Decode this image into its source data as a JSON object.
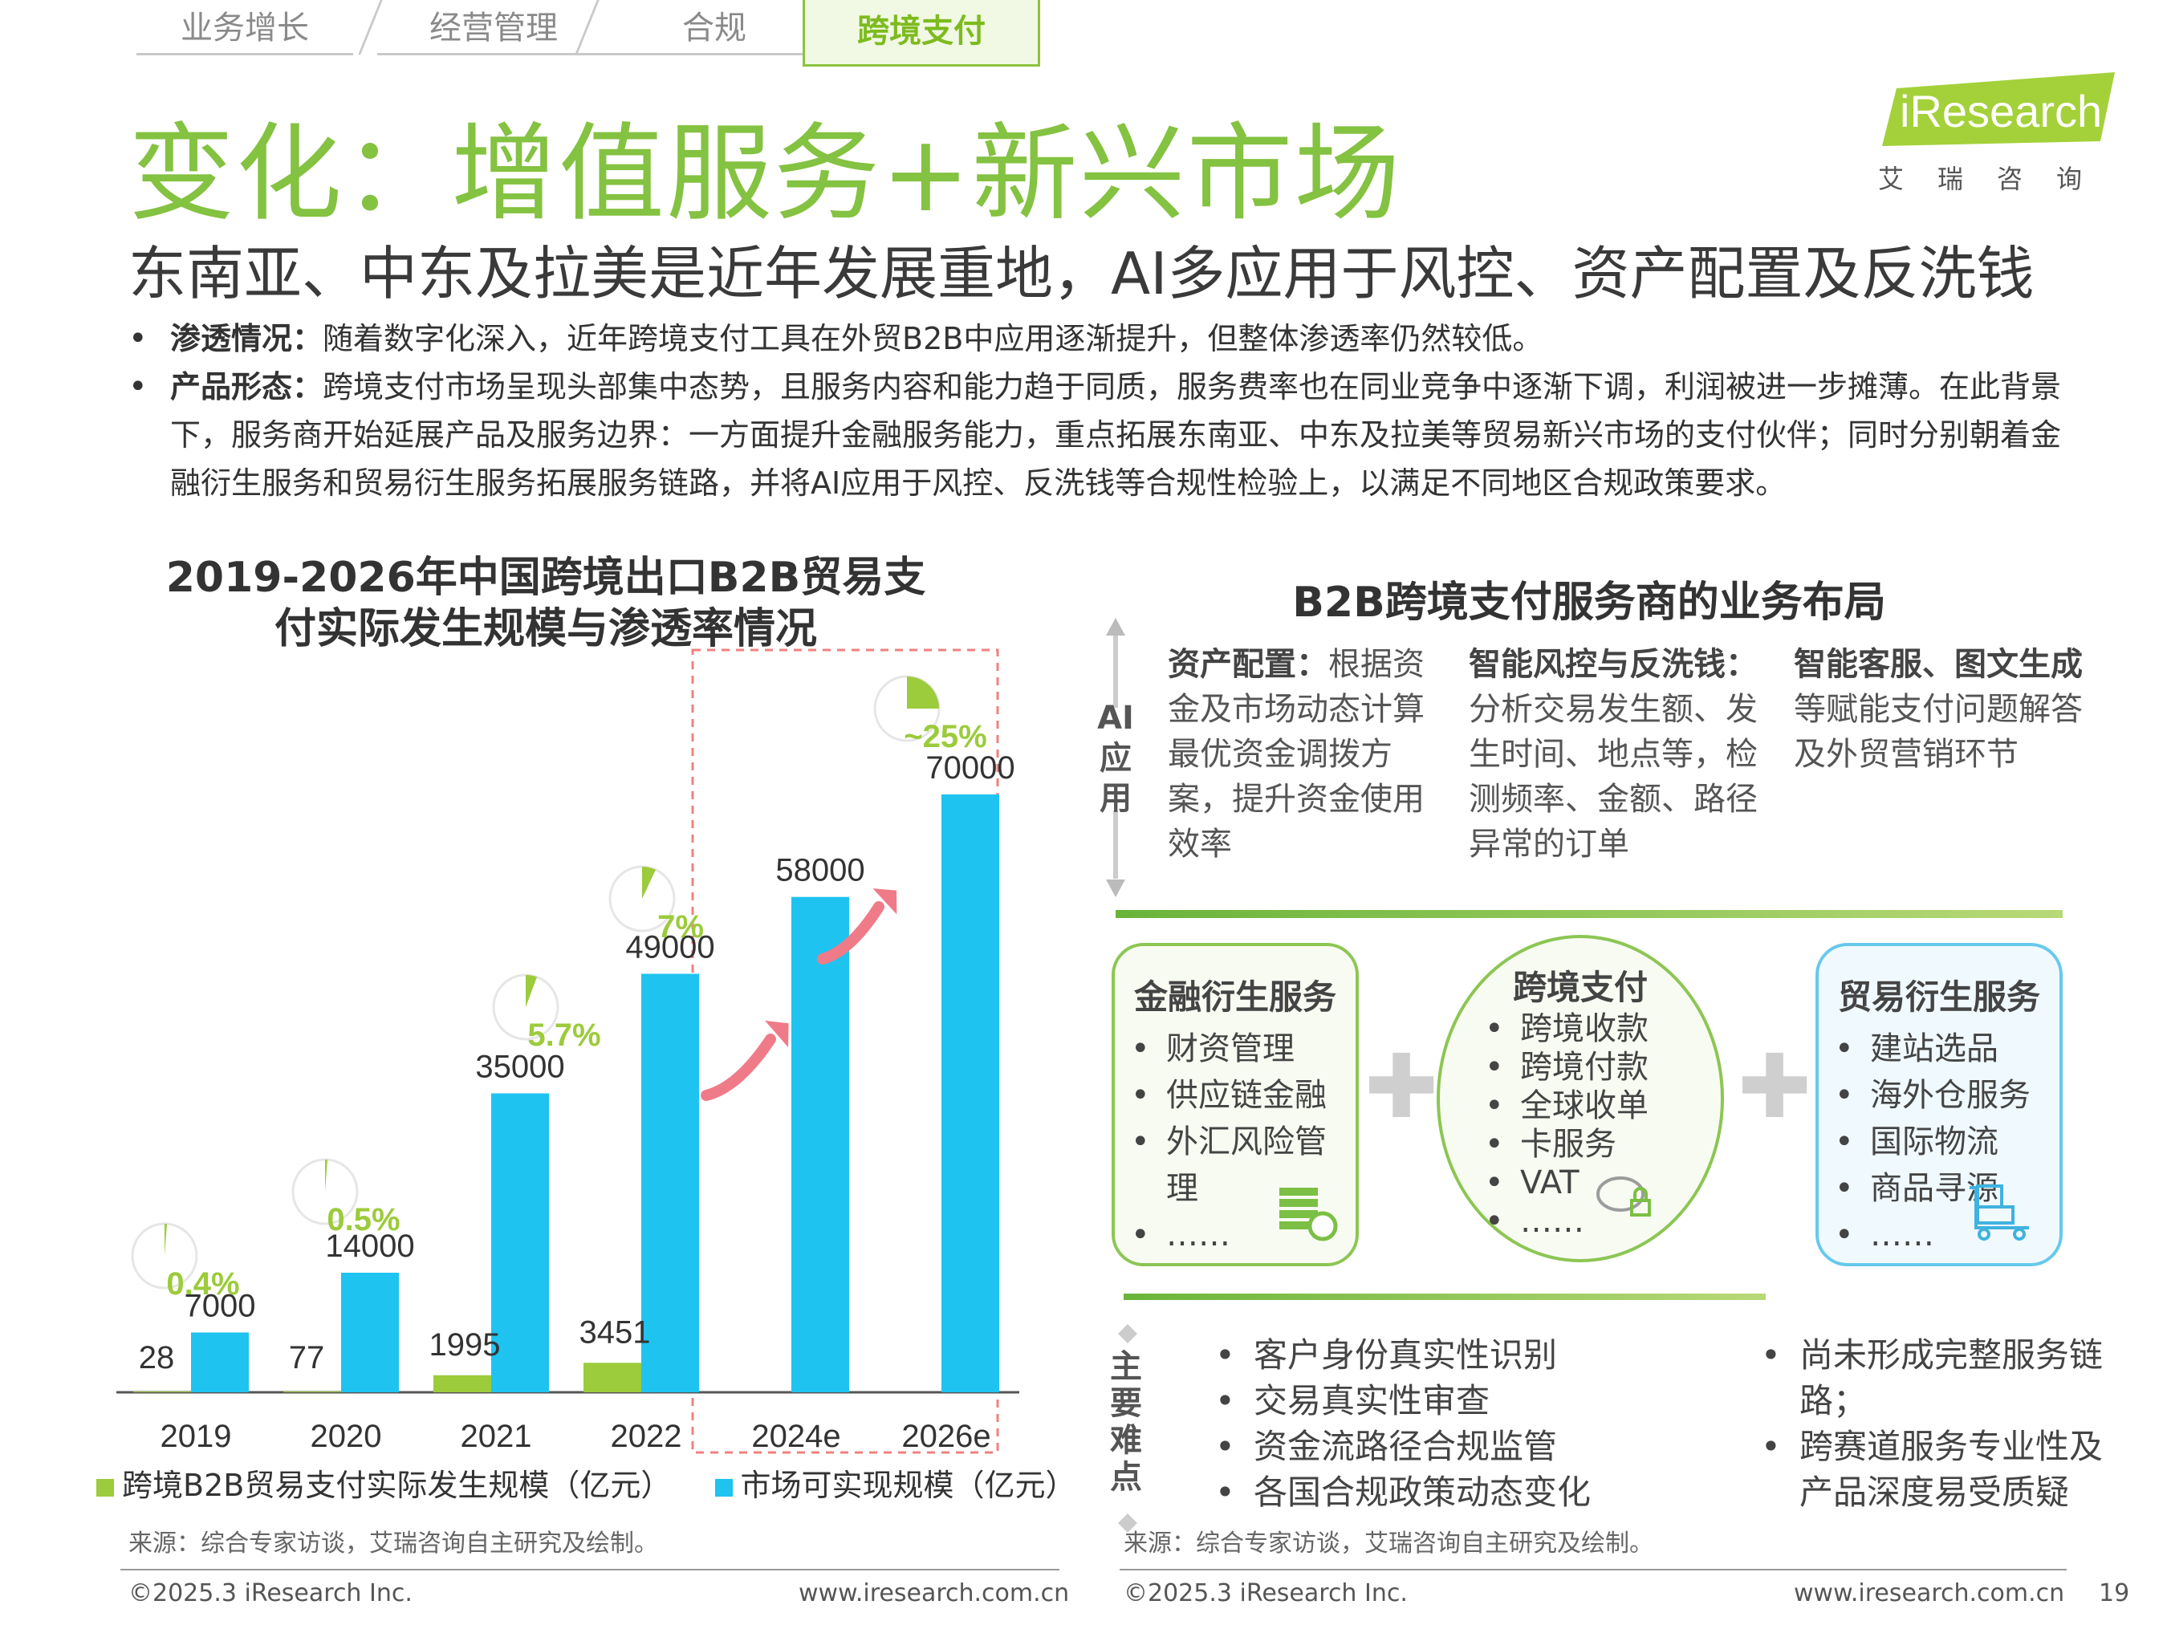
{
  "tabs": [
    "业务增长",
    "经营管理",
    "合规",
    "跨境支付"
  ],
  "title": "变化：增值服务+新兴市场",
  "subtitle": "东南亚、中东及拉美是近年发展重地，AI多应用于风控、资产配置及反洗钱",
  "logo": {
    "text": "iResearch",
    "cn": "艾瑞咨询"
  },
  "bullets": [
    {
      "label": "渗透情况：",
      "text": "随着数字化深入，近年跨境支付工具在外贸B2B中应用逐渐提升，但整体渗透率仍然较低。"
    },
    {
      "label": "产品形态：",
      "text": "跨境支付市场呈现头部集中态势，且服务内容和能力趋于同质，服务费率也在同业竞争中逐渐下调，利润被进一步摊薄。在此背景下，服务商开始延展产品及服务边界：一方面提升金融服务能力，重点拓展东南亚、中东及拉美等贸易新兴市场的支付伙伴；同时分别朝着金融衍生服务和贸易衍生服务拓展服务链路，并将AI应用于风控、反洗钱等合规性检验上，以满足不同地区合规政策要求。"
    }
  ],
  "chart_data": {
    "type": "bar",
    "title": "2019-2026年中国跨境出口B2B贸易支付实际发生规模与渗透率情况",
    "categories": [
      "2019",
      "2020",
      "2021",
      "2022",
      "2024e",
      "2026e"
    ],
    "series": [
      {
        "name": "跨境B2B贸易支付实际发生规模（亿元）",
        "color": "#9ccb3b",
        "values": [
          28,
          77,
          1995,
          3451,
          null,
          null
        ],
        "labels": [
          "28",
          "77",
          "1995",
          "3451",
          "",
          ""
        ]
      },
      {
        "name": "市场可实现规模（亿元）",
        "color": "#1ec3f0",
        "values": [
          7000,
          14000,
          35000,
          49000,
          58000,
          70000
        ],
        "labels": [
          "7000",
          "14000",
          "35000",
          "49000",
          "58000",
          "70000"
        ]
      }
    ],
    "penetration": [
      {
        "label": "0.4%",
        "value": 0.4
      },
      {
        "label": "0.5%",
        "value": 0.5
      },
      {
        "label": "5.7%",
        "value": 5.7
      },
      {
        "label": "7%",
        "value": 7
      },
      null,
      {
        "label": "~25%",
        "value": 25
      }
    ],
    "ylim": [
      0,
      70000
    ],
    "forecast_highlight": [
      "2024e",
      "2026e"
    ]
  },
  "chart_source": "来源：综合专家访谈，艾瑞咨询自主研究及绘制。",
  "footer_left": {
    "copyright": "©2025.3 iResearch Inc.",
    "url": "www.iresearch.com.cn"
  },
  "right_panel": {
    "title": "B2B跨境支付服务商的业务布局",
    "ai_label": "AI应用",
    "ai_cols": [
      {
        "head": "资产配置：",
        "text": "根据资金及市场动态计算最优资金调拨方案，提升资金使用效率"
      },
      {
        "head": "智能风控与反洗钱：",
        "text": "分析交易发生额、发生时间、地点等，检测频率、金额、路径异常的订单"
      },
      {
        "head": "智能客服、图文生成",
        "text": "等赋能支付问题解答及外贸营销环节"
      }
    ],
    "boxes": [
      {
        "title": "金融衍生服务",
        "items": [
          "财资管理",
          "供应链金融",
          "外汇风险管理",
          "……"
        ]
      },
      {
        "title": "跨境支付",
        "items": [
          "跨境收款",
          "跨境付款",
          "全球收单",
          "卡服务",
          "VAT",
          "……"
        ]
      },
      {
        "title": "贸易衍生服务",
        "items": [
          "建站选品",
          "海外仓服务",
          "国际物流",
          "商品寻源",
          "……"
        ]
      }
    ],
    "diff_label": "主要难点",
    "difficulties_left": [
      "客户身份真实性识别",
      "交易真实性审查",
      "资金流路径合规监管",
      "各国合规政策动态变化"
    ],
    "difficulties_right": [
      "尚未形成完整服务链路；",
      "跨赛道服务专业性及产品深度易受质疑"
    ],
    "source": "来源：综合专家访谈，艾瑞咨询自主研究及绘制。"
  },
  "footer_right": {
    "copyright": "©2025.3 iResearch Inc.",
    "url": "www.iresearch.com.cn",
    "page": "19"
  }
}
